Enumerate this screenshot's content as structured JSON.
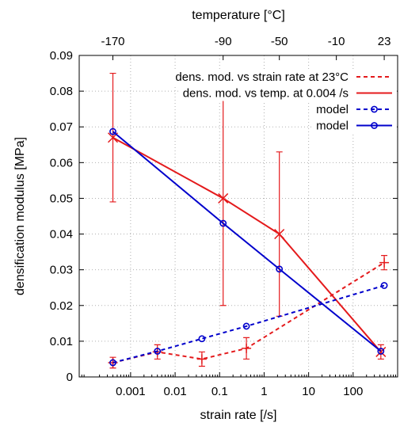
{
  "chart_data": {
    "type": "line",
    "xlabel": "strain rate [/s]",
    "ylabel": "densification modulus [MPa]",
    "x2label": "temperature [°C]",
    "x_scale": "log",
    "xlim": [
      7e-05,
      1000
    ],
    "ylim": [
      0,
      0.09
    ],
    "grid": true,
    "legend_position": "top-right",
    "x_ticks": [
      {
        "value": 0.001,
        "label": "0.001"
      },
      {
        "value": 0.01,
        "label": "0.01"
      },
      {
        "value": 0.1,
        "label": "0.1"
      },
      {
        "value": 1,
        "label": "1"
      },
      {
        "value": 10,
        "label": "10"
      },
      {
        "value": 100,
        "label": "100"
      }
    ],
    "y_ticks": [
      {
        "value": 0,
        "label": "0"
      },
      {
        "value": 0.01,
        "label": "0.01"
      },
      {
        "value": 0.02,
        "label": "0.02"
      },
      {
        "value": 0.03,
        "label": "0.03"
      },
      {
        "value": 0.04,
        "label": "0.04"
      },
      {
        "value": 0.05,
        "label": "0.05"
      },
      {
        "value": 0.06,
        "label": "0.06"
      },
      {
        "value": 0.07,
        "label": "0.07"
      },
      {
        "value": 0.08,
        "label": "0.08"
      },
      {
        "value": 0.09,
        "label": "0.09"
      }
    ],
    "x2_ticks": [
      {
        "label": "-170",
        "at_strain_rate": 0.0004
      },
      {
        "label": "-90",
        "at_strain_rate": 0.12
      },
      {
        "label": "-50",
        "at_strain_rate": 2.2
      },
      {
        "label": "-10",
        "at_strain_rate": 42
      },
      {
        "label": "23",
        "at_strain_rate": 500
      }
    ],
    "series": [
      {
        "name": "dens. mod. vs strain rate at 23°C",
        "color": "#e41a1c",
        "line_style": "dashed",
        "marker": "plus",
        "x": [
          0.0004,
          0.004,
          0.04,
          0.4,
          500
        ],
        "y": [
          0.004,
          0.007,
          0.005,
          0.008,
          0.032
        ],
        "y_err": [
          0.0015,
          0.002,
          0.002,
          0.003,
          0.002
        ]
      },
      {
        "name": "dens. mod. vs temp. at 0.004 /s",
        "color": "#e41a1c",
        "line_style": "solid",
        "marker": "cross",
        "x": [
          0.0004,
          0.12,
          2.2,
          420
        ],
        "y": [
          0.067,
          0.05,
          0.04,
          0.007
        ],
        "y_err": [
          0.018,
          0.03,
          0.023,
          0.002
        ]
      },
      {
        "name": "model",
        "color": "#0000cc",
        "line_style": "dashed",
        "marker": "circle",
        "x": [
          0.0004,
          0.004,
          0.04,
          0.4,
          500
        ],
        "y": [
          0.004,
          0.0072,
          0.0107,
          0.0142,
          0.0256
        ]
      },
      {
        "name": "model",
        "color": "#0000cc",
        "line_style": "solid",
        "marker": "circle",
        "x": [
          0.0004,
          0.12,
          2.2,
          420
        ],
        "y": [
          0.0687,
          0.043,
          0.0302,
          0.0072
        ]
      }
    ]
  }
}
